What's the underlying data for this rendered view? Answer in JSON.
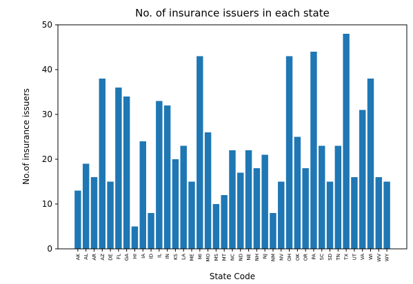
{
  "chart_data": {
    "type": "bar",
    "title": "No. of insurance issuers in each state",
    "xlabel": "State Code",
    "ylabel": "No.of insurance issuers",
    "ylim": [
      0,
      50
    ],
    "yticks": [
      0,
      10,
      20,
      30,
      40,
      50
    ],
    "grid": false,
    "bar_color": "#1f77b4",
    "categories": [
      "AK",
      "AL",
      "AR",
      "AZ",
      "DE",
      "FL",
      "GA",
      "HI",
      "IA",
      "ID",
      "IL",
      "IN",
      "KS",
      "LA",
      "ME",
      "MI",
      "MO",
      "MS",
      "MT",
      "NC",
      "ND",
      "NE",
      "NH",
      "NJ",
      "NM",
      "NV",
      "OH",
      "OK",
      "OR",
      "PA",
      "SC",
      "SD",
      "TN",
      "TX",
      "UT",
      "VA",
      "WI",
      "WV",
      "WY"
    ],
    "values": [
      13,
      19,
      16,
      38,
      15,
      36,
      34,
      5,
      24,
      8,
      33,
      32,
      20,
      23,
      15,
      43,
      26,
      10,
      12,
      22,
      17,
      22,
      18,
      21,
      8,
      15,
      43,
      25,
      18,
      44,
      23,
      15,
      23,
      48,
      16,
      31,
      38,
      16,
      15
    ]
  }
}
